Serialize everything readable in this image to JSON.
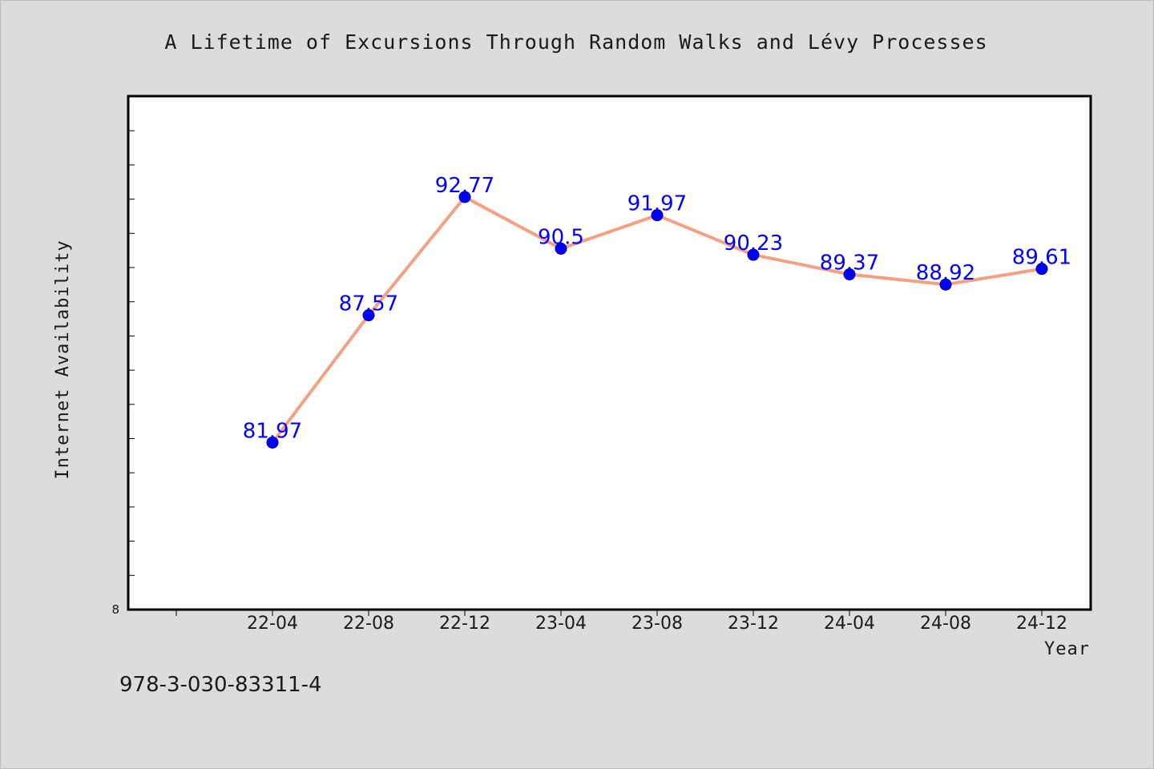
{
  "chart_data": {
    "type": "line",
    "title": "A Lifetime of Excursions Through Random Walks and Lévy Processes",
    "xlabel": "Year",
    "ylabel": "Internet Availability",
    "categories": [
      "22-04",
      "22-08",
      "22-12",
      "23-04",
      "23-08",
      "23-12",
      "24-04",
      "24-08",
      "24-12"
    ],
    "series": [
      {
        "values": [
          81.97,
          87.57,
          92.77,
          90.5,
          91.97,
          90.23,
          89.37,
          88.92,
          89.61
        ]
      }
    ],
    "data_labels": [
      "81.97",
      "87.57",
      "92.77",
      "90.5",
      "91.97",
      "90.23",
      "89.37",
      "88.92",
      "89.61"
    ],
    "y_tick_labels": [
      "8"
    ],
    "ylim": [
      74.62,
      97.21
    ],
    "grid": false,
    "legend": "none",
    "colors": {
      "line": "#f4a081",
      "marker": "#0000ff",
      "data_label": "#0000ff",
      "background": "#dcdcdc",
      "plot_background": "#ffffff"
    }
  },
  "footnote": "978-3-030-83311-4"
}
